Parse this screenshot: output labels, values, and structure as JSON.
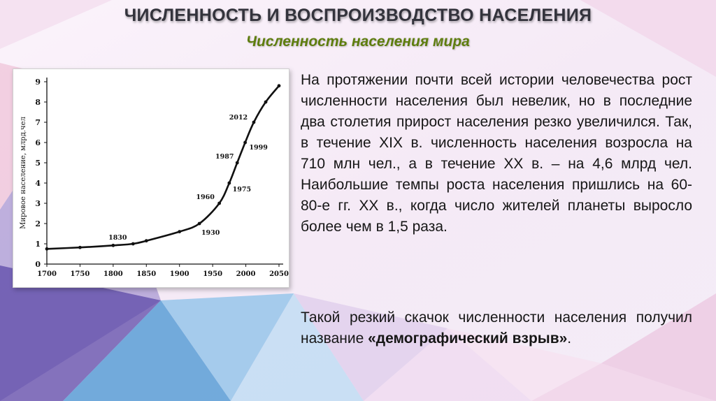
{
  "slide": {
    "title": "ЧИСЛЕННОСТЬ И ВОСПРОИЗВОДСТВО НАСЕЛЕНИЯ",
    "subtitle": "Численность населения мира",
    "paragraph1": "На протяжении почти всей истории человечества рост численности населения был невелик, но в последние два столетия прирост населения резко увеличился. Так, в течение XIX в. численность населения возросла на 710 млн чел., а в течение XX в. – на 4,6 млрд чел. Наибольшие темпы роста населения пришлись на 60-80-е гг. XX в., когда число жителей планеты выросло более чем в 1,5 раза.",
    "paragraph2_text": "Такой резкий скачок численности населения получил название ",
    "paragraph2_bold": "«демографический взрыв»",
    "paragraph2_end": "."
  },
  "chart_data": {
    "type": "line",
    "ylabel": "Мировое население, млрд.чел",
    "xlabel": "",
    "xlim": [
      1700,
      2050
    ],
    "ylim": [
      0,
      9
    ],
    "x_ticks": [
      1700,
      1750,
      1800,
      1850,
      1900,
      1950,
      2000,
      2050
    ],
    "y_ticks": [
      0,
      1,
      2,
      3,
      4,
      5,
      6,
      7,
      8,
      9
    ],
    "grid": false,
    "series": [
      {
        "x": [
          1700,
          1750,
          1800,
          1830,
          1850,
          1900,
          1930,
          1960,
          1975,
          1987,
          1999,
          2012,
          2030,
          2050
        ],
        "y": [
          0.75,
          0.82,
          0.92,
          1.0,
          1.15,
          1.6,
          2.0,
          3.0,
          4.0,
          5.0,
          6.0,
          7.0,
          8.0,
          8.8
        ]
      }
    ],
    "annotations": [
      {
        "label": "1830",
        "x": 1830,
        "y": 1.0
      },
      {
        "label": "1930",
        "x": 1930,
        "y": 2.0
      },
      {
        "label": "1960",
        "x": 1960,
        "y": 3.0
      },
      {
        "label": "1975",
        "x": 1975,
        "y": 4.0
      },
      {
        "label": "1987",
        "x": 1987,
        "y": 5.0
      },
      {
        "label": "1999",
        "x": 1999,
        "y": 6.0
      },
      {
        "label": "2012",
        "x": 2012,
        "y": 7.0
      }
    ],
    "colors": {
      "line": "#111111",
      "axis": "#111111",
      "background": "#ffffff"
    }
  }
}
